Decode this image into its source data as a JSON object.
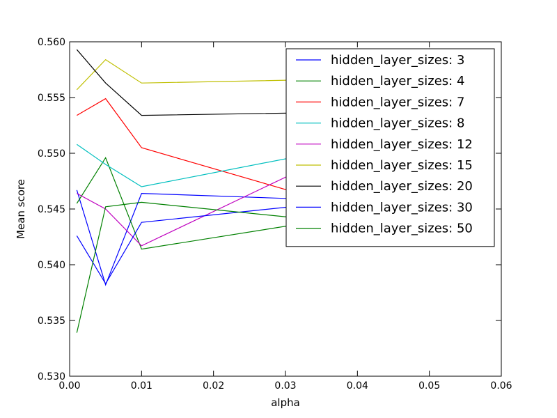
{
  "chart_data": {
    "type": "line",
    "xlabel": "alpha",
    "ylabel": "Mean score",
    "xlim": [
      0.0,
      0.06
    ],
    "ylim": [
      0.53,
      0.56
    ],
    "x_ticks": [
      0.0,
      0.01,
      0.02,
      0.03,
      0.04,
      0.05,
      0.06
    ],
    "x_tick_labels": [
      "0.00",
      "0.01",
      "0.02",
      "0.03",
      "0.04",
      "0.05",
      "0.06"
    ],
    "y_ticks": [
      0.53,
      0.535,
      0.54,
      0.545,
      0.55,
      0.555,
      0.56
    ],
    "y_tick_labels": [
      "0.530",
      "0.535",
      "0.540",
      "0.545",
      "0.550",
      "0.555",
      "0.560"
    ],
    "grid": false,
    "legend_position": "top-right",
    "x": [
      0.001,
      0.005,
      0.01,
      0.05
    ],
    "series": [
      {
        "name": "hidden_layer_sizes: 3",
        "color": "#0000ff",
        "values": [
          0.5467,
          0.5382,
          0.5464,
          0.5455
        ]
      },
      {
        "name": "hidden_layer_sizes: 4",
        "color": "#008000",
        "values": [
          0.5455,
          0.5496,
          0.5414,
          0.5455
        ]
      },
      {
        "name": "hidden_layer_sizes: 7",
        "color": "#ff0000",
        "values": [
          0.5534,
          0.5549,
          0.5505,
          0.543
        ]
      },
      {
        "name": "hidden_layer_sizes: 8",
        "color": "#00bfbf",
        "values": [
          0.5508,
          0.549,
          0.547,
          0.552
        ]
      },
      {
        "name": "hidden_layer_sizes: 12",
        "color": "#bf00bf",
        "values": [
          0.5464,
          0.545,
          0.5417,
          0.554
        ]
      },
      {
        "name": "hidden_layer_sizes: 15",
        "color": "#bfbf00",
        "values": [
          0.5557,
          0.5584,
          0.5563,
          0.5568
        ]
      },
      {
        "name": "hidden_layer_sizes: 20",
        "color": "#000000",
        "values": [
          0.5593,
          0.5563,
          0.5534,
          0.5538
        ]
      },
      {
        "name": "hidden_layer_sizes: 30",
        "color": "#0000ff",
        "values": [
          0.5426,
          0.5383,
          0.5438,
          0.5465
        ]
      },
      {
        "name": "hidden_layer_sizes: 50",
        "color": "#008000",
        "values": [
          0.5339,
          0.5452,
          0.5456,
          0.543
        ]
      }
    ]
  }
}
